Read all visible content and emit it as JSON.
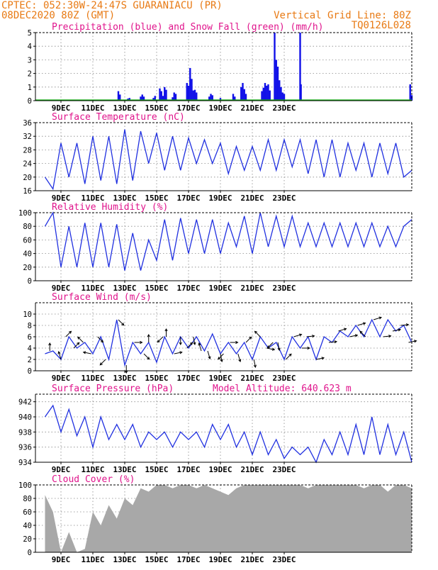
{
  "header": {
    "line1_left": "CPTEC:   052:30W-24:47S   GUARANIACU (PR)",
    "line2_left": "08DEC2020 80Z (GMT)",
    "line2_right": "Vertical Grid Line: 80Z",
    "line3_right": "TQ0126L028"
  },
  "colors": {
    "header": "#e87a14",
    "title": "#e0148c",
    "line": "#2030e0",
    "precip": "#1010e8",
    "snow": "#10b010",
    "cloud": "#a8a8a8",
    "grid": "#888888"
  },
  "x_axis": {
    "ticks": [
      "9DEC",
      "11DEC",
      "13DEC",
      "15DEC",
      "17DEC",
      "19DEC",
      "21DEC",
      "23DEC"
    ]
  },
  "chart_data": [
    {
      "id": "precip",
      "type": "bar",
      "title": "Precipitation (blue) and Snow Fall (green) (mm/h)",
      "ylim": [
        0,
        5
      ],
      "yticks": [
        0,
        1,
        2,
        3,
        4,
        5
      ],
      "series": [
        {
          "name": "Precipitation",
          "color": "#1010e8",
          "points": [
            [
              4.6,
              0.7
            ],
            [
              4.7,
              0.45
            ],
            [
              5.2,
              0.15
            ],
            [
              5.3,
              0.2
            ],
            [
              6.0,
              0.3
            ],
            [
              6.1,
              0.45
            ],
            [
              6.2,
              0.3
            ],
            [
              6.8,
              0.2
            ],
            [
              6.9,
              0.35
            ],
            [
              7.2,
              0.9
            ],
            [
              7.3,
              0.7
            ],
            [
              7.4,
              0.35
            ],
            [
              7.5,
              1.0
            ],
            [
              7.6,
              0.8
            ],
            [
              8.0,
              0.25
            ],
            [
              8.1,
              0.6
            ],
            [
              8.2,
              0.5
            ],
            [
              8.9,
              1.3
            ],
            [
              9.0,
              1.1
            ],
            [
              9.1,
              2.4
            ],
            [
              9.2,
              1.6
            ],
            [
              9.3,
              0.75
            ],
            [
              9.4,
              0.8
            ],
            [
              9.5,
              0.6
            ],
            [
              10.3,
              0.3
            ],
            [
              10.4,
              0.5
            ],
            [
              10.5,
              0.4
            ],
            [
              11.0,
              0.2
            ],
            [
              11.8,
              0.5
            ],
            [
              11.9,
              0.3
            ],
            [
              12.3,
              1.0
            ],
            [
              12.4,
              1.3
            ],
            [
              12.5,
              0.85
            ],
            [
              12.6,
              0.5
            ],
            [
              13.6,
              0.7
            ],
            [
              13.7,
              0.95
            ],
            [
              13.8,
              1.3
            ],
            [
              13.9,
              1.1
            ],
            [
              14.0,
              1.2
            ],
            [
              14.1,
              0.75
            ],
            [
              14.4,
              5.0
            ],
            [
              14.5,
              3.0
            ],
            [
              14.6,
              2.5
            ],
            [
              14.7,
              1.5
            ],
            [
              14.8,
              1.0
            ],
            [
              14.9,
              0.6
            ],
            [
              15.0,
              0.5
            ],
            [
              16.0,
              5.0
            ],
            [
              16.05,
              1.2
            ],
            [
              22.9,
              1.2
            ],
            [
              23.0,
              0.4
            ]
          ]
        },
        {
          "name": "Snow Fall",
          "color": "#10b010",
          "values": []
        }
      ]
    },
    {
      "id": "temp",
      "type": "line",
      "title": "Surface Temperature (nC)",
      "ylim": [
        16,
        36
      ],
      "yticks": [
        16,
        20,
        24,
        28,
        32,
        36
      ],
      "x": [
        0,
        0.5,
        1.0,
        1.5,
        2.0,
        2.5,
        3.0,
        3.5,
        4.0,
        4.5,
        5.0,
        5.5,
        6.0,
        6.5,
        7.0,
        7.5,
        8.0,
        8.5,
        9.0,
        9.5,
        10.0,
        10.5,
        11.0,
        11.5,
        12.0,
        12.5,
        13.0,
        13.5,
        14.0,
        14.5,
        15.0,
        15.5,
        16.0,
        16.5,
        17.0,
        17.5,
        18.0,
        18.5,
        19.0,
        19.5,
        20.0,
        20.5,
        21.0,
        21.5,
        22.0,
        22.5,
        23.0
      ],
      "values": [
        20,
        16.5,
        30,
        20,
        30,
        18,
        32,
        19,
        32,
        18,
        34,
        19,
        33.5,
        24,
        33,
        22,
        32,
        22,
        31.5,
        24,
        31,
        24,
        30,
        21,
        29,
        22,
        29,
        22,
        31,
        22,
        31,
        23,
        31,
        21,
        31,
        20,
        31,
        20,
        30,
        22,
        30,
        20,
        30,
        21,
        30,
        20,
        22
      ]
    },
    {
      "id": "rh",
      "type": "line",
      "title": "Relative Humidity (%)",
      "ylim": [
        0,
        100
      ],
      "yticks": [
        0,
        20,
        40,
        60,
        80,
        100
      ],
      "x": [
        0,
        0.5,
        1.0,
        1.5,
        2.0,
        2.5,
        3.0,
        3.5,
        4.0,
        4.5,
        5.0,
        5.5,
        6.0,
        6.5,
        7.0,
        7.5,
        8.0,
        8.5,
        9.0,
        9.5,
        10.0,
        10.5,
        11.0,
        11.5,
        12.0,
        12.5,
        13.0,
        13.5,
        14.0,
        14.5,
        15.0,
        15.5,
        16.0,
        16.5,
        17.0,
        17.5,
        18.0,
        18.5,
        19.0,
        19.5,
        20.0,
        20.5,
        21.0,
        21.5,
        22.0,
        22.5,
        23.0
      ],
      "values": [
        80,
        100,
        20,
        80,
        20,
        85,
        20,
        85,
        20,
        83,
        15,
        70,
        15,
        60,
        30,
        90,
        30,
        92,
        40,
        90,
        40,
        90,
        40,
        85,
        50,
        95,
        40,
        100,
        50,
        95,
        50,
        95,
        50,
        85,
        50,
        85,
        50,
        85,
        50,
        85,
        50,
        85,
        50,
        80,
        50,
        80,
        90
      ]
    },
    {
      "id": "wind",
      "type": "line",
      "title": "Surface Wind (m/s)",
      "ylim": [
        0,
        12
      ],
      "yticks": [
        0,
        2,
        4,
        6,
        8,
        10
      ],
      "x": [
        0,
        0.5,
        1.0,
        1.5,
        2.0,
        2.5,
        3.0,
        3.5,
        4.0,
        4.5,
        5.0,
        5.5,
        6.0,
        6.5,
        7.0,
        7.5,
        8.0,
        8.5,
        9.0,
        9.5,
        10.0,
        10.5,
        11.0,
        11.5,
        12.0,
        12.5,
        13.0,
        13.5,
        14.0,
        14.5,
        15.0,
        15.5,
        16.0,
        16.5,
        17.0,
        17.5,
        18.0,
        18.5,
        19.0,
        19.5,
        20.0,
        20.5,
        21.0,
        21.5,
        22.0,
        22.5,
        23.0
      ],
      "values": [
        3,
        3.5,
        2,
        6,
        4,
        5,
        3,
        6,
        2,
        9,
        1,
        5,
        3,
        5,
        1.5,
        6,
        3,
        6,
        4,
        6,
        3.5,
        6.5,
        3,
        5,
        3,
        5,
        2,
        6,
        4,
        5,
        2,
        6,
        4,
        6,
        2,
        6,
        5,
        7,
        6,
        8,
        6,
        9,
        6,
        9,
        7,
        8,
        5
      ],
      "arrows": [
        [
          0.3,
          0,
          1
        ],
        [
          1.0,
          -0.3,
          1
        ],
        [
          1.3,
          0.7,
          0.7
        ],
        [
          1.8,
          0.7,
          0.7
        ],
        [
          2.4,
          -0.7,
          0.7
        ],
        [
          2.9,
          -1,
          0.2
        ],
        [
          3.3,
          0.7,
          -0.7
        ],
        [
          3.8,
          -0.7,
          -0.7
        ],
        [
          4.6,
          0.7,
          -0.7
        ],
        [
          5.1,
          0,
          -1
        ],
        [
          5.6,
          1,
          0
        ],
        [
          6.2,
          0.7,
          -0.7
        ],
        [
          6.5,
          0,
          1
        ],
        [
          7.4,
          -0.7,
          -0.7
        ],
        [
          7.6,
          0,
          1
        ],
        [
          8.1,
          1,
          0.2
        ],
        [
          8.5,
          0,
          -1
        ],
        [
          8.9,
          0.7,
          0.7
        ],
        [
          9.3,
          0.2,
          -1
        ],
        [
          9.8,
          -0.3,
          1
        ],
        [
          10.2,
          0.3,
          -1
        ],
        [
          11.0,
          0.2,
          -1
        ],
        [
          11.2,
          -0.7,
          -0.7
        ],
        [
          11.6,
          1,
          0
        ],
        [
          12.1,
          0.3,
          -1
        ],
        [
          12.6,
          0.7,
          0.7
        ],
        [
          13.1,
          0.2,
          -1
        ],
        [
          13.5,
          -0.7,
          0.7
        ],
        [
          13.9,
          1,
          -0.2
        ],
        [
          14.3,
          -0.7,
          -0.7
        ],
        [
          14.6,
          0.2,
          -1
        ],
        [
          15.1,
          0.7,
          0.7
        ],
        [
          15.6,
          1,
          0.3
        ],
        [
          16.1,
          1,
          0
        ],
        [
          16.4,
          1,
          0.1
        ],
        [
          17.0,
          1,
          0.2
        ],
        [
          17.8,
          1,
          0.1
        ],
        [
          18.4,
          1,
          0.3
        ],
        [
          19.1,
          1,
          0.2
        ],
        [
          19.6,
          1,
          0.3
        ],
        [
          20.1,
          -0.7,
          0.7
        ],
        [
          20.6,
          1,
          0.3
        ],
        [
          21.2,
          1,
          0.1
        ],
        [
          21.8,
          1,
          0.2
        ],
        [
          22.3,
          1,
          0.1
        ],
        [
          22.8,
          1,
          0.2
        ]
      ]
    },
    {
      "id": "pressure",
      "type": "line",
      "title": "Surface Pressure (hPa)",
      "annotation": "Model Altitude: 640.623 m",
      "ylim": [
        934,
        943
      ],
      "yticks": [
        934,
        936,
        938,
        940,
        942
      ],
      "x": [
        0,
        0.5,
        1.0,
        1.5,
        2.0,
        2.5,
        3.0,
        3.5,
        4.0,
        4.5,
        5.0,
        5.5,
        6.0,
        6.5,
        7.0,
        7.5,
        8.0,
        8.5,
        9.0,
        9.5,
        10.0,
        10.5,
        11.0,
        11.5,
        12.0,
        12.5,
        13.0,
        13.5,
        14.0,
        14.5,
        15.0,
        15.5,
        16.0,
        16.5,
        17.0,
        17.5,
        18.0,
        18.5,
        19.0,
        19.5,
        20.0,
        20.5,
        21.0,
        21.5,
        22.0,
        22.5,
        23.0
      ],
      "values": [
        940,
        941.5,
        938,
        941,
        937.5,
        940,
        936,
        940,
        937,
        939,
        937,
        939,
        936,
        938,
        937,
        938,
        936,
        938,
        937,
        938,
        936,
        939,
        937,
        939,
        936,
        938,
        935,
        938,
        935,
        937,
        934.5,
        936,
        935,
        936,
        934,
        937,
        935,
        938,
        935,
        939,
        935,
        940,
        935,
        939,
        935,
        938,
        934
      ]
    },
    {
      "id": "cloud",
      "type": "area",
      "title": "Cloud Cover (%)",
      "ylim": [
        0,
        100
      ],
      "yticks": [
        0,
        20,
        40,
        60,
        80,
        100
      ],
      "x": [
        0,
        0.5,
        1.0,
        1.5,
        2.0,
        2.5,
        3.0,
        3.5,
        4.0,
        4.5,
        5.0,
        5.5,
        6.0,
        6.5,
        7.0,
        7.5,
        8.0,
        8.5,
        9.0,
        9.5,
        10.0,
        10.5,
        11.0,
        11.5,
        12.0,
        12.5,
        13.0,
        13.5,
        14.0,
        14.5,
        15.0,
        15.5,
        16.0,
        16.5,
        17.0,
        17.5,
        18.0,
        18.5,
        19.0,
        19.5,
        20.0,
        20.5,
        21.0,
        21.5,
        22.0,
        22.5,
        23.0
      ],
      "values": [
        85,
        60,
        0,
        30,
        0,
        5,
        60,
        40,
        70,
        50,
        80,
        70,
        95,
        90,
        100,
        100,
        95,
        100,
        100,
        95,
        100,
        95,
        90,
        85,
        95,
        100,
        100,
        100,
        100,
        100,
        100,
        100,
        100,
        95,
        100,
        100,
        100,
        100,
        100,
        100,
        95,
        100,
        100,
        90,
        100,
        100,
        95
      ]
    }
  ]
}
